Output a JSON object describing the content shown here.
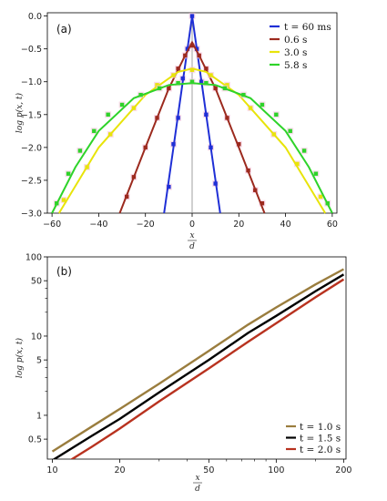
{
  "chart_data": [
    {
      "type": "line",
      "panel_label": "(a)",
      "xlabel_num": "x",
      "xlabel_den": "d",
      "ylabel": "log p(x, t)",
      "xlim": [
        -62,
        62
      ],
      "ylim": [
        -3.0,
        0.05
      ],
      "xticks": [
        -60,
        -40,
        -20,
        0,
        20,
        40,
        60
      ],
      "yticks": [
        0.0,
        -0.5,
        -1.0,
        -1.5,
        -2.0,
        -2.5,
        -3.0
      ],
      "xtick_labels": [
        "−60",
        "−40",
        "−20",
        "0",
        "20",
        "40",
        "60"
      ],
      "ytick_labels": [
        "0.0",
        "−0.5",
        "−1.0",
        "−1.5",
        "−2.0",
        "−2.5",
        "−3.0"
      ],
      "legend_position": "top-right",
      "series": [
        {
          "name": "t = 60 ms",
          "color": "#1f2fd6",
          "curve": [
            [
              -12,
              -3.0
            ],
            [
              -8,
              -2.0
            ],
            [
              -4,
              -1.0
            ],
            [
              -2,
              -0.5
            ],
            [
              0,
              0.0
            ],
            [
              2,
              -0.5
            ],
            [
              4,
              -1.0
            ],
            [
              8,
              -2.0
            ],
            [
              12,
              -3.0
            ]
          ],
          "points": [
            [
              -10,
              -2.6
            ],
            [
              -8,
              -1.95
            ],
            [
              -6,
              -1.55
            ],
            [
              -4,
              -0.95
            ],
            [
              -2,
              -0.5
            ],
            [
              0,
              0.0
            ],
            [
              2,
              -0.5
            ],
            [
              4,
              -1.0
            ],
            [
              6,
              -1.5
            ],
            [
              8,
              -2.0
            ],
            [
              10,
              -2.55
            ]
          ]
        },
        {
          "name": "0.6 s",
          "color": "#9c2a1e",
          "curve": [
            [
              -31,
              -3.0
            ],
            [
              -20,
              -2.0
            ],
            [
              -10,
              -1.1
            ],
            [
              -3,
              -0.6
            ],
            [
              0,
              -0.4
            ],
            [
              3,
              -0.6
            ],
            [
              10,
              -1.1
            ],
            [
              20,
              -2.0
            ],
            [
              31,
              -3.0
            ]
          ],
          "points": [
            [
              -28,
              -2.75
            ],
            [
              -25,
              -2.45
            ],
            [
              -20,
              -2.0
            ],
            [
              -15,
              -1.55
            ],
            [
              -10,
              -1.1
            ],
            [
              -6,
              -0.8
            ],
            [
              -3,
              -0.6
            ],
            [
              0,
              -0.45
            ],
            [
              3,
              -0.6
            ],
            [
              6,
              -0.8
            ],
            [
              10,
              -1.1
            ],
            [
              15,
              -1.55
            ],
            [
              20,
              -1.95
            ],
            [
              24,
              -2.35
            ],
            [
              27,
              -2.65
            ],
            [
              30,
              -2.85
            ]
          ]
        },
        {
          "name": "3.0 s",
          "color": "#e8e40a",
          "curve": [
            [
              -57,
              -3.0
            ],
            [
              -40,
              -2.0
            ],
            [
              -20,
              -1.2
            ],
            [
              -6,
              -0.85
            ],
            [
              0,
              -0.8
            ],
            [
              6,
              -0.85
            ],
            [
              20,
              -1.2
            ],
            [
              40,
              -2.0
            ],
            [
              57,
              -3.0
            ]
          ],
          "points": [
            [
              -55,
              -2.8
            ],
            [
              -45,
              -2.3
            ],
            [
              -35,
              -1.8
            ],
            [
              -25,
              -1.4
            ],
            [
              -15,
              -1.05
            ],
            [
              -8,
              -0.9
            ],
            [
              0,
              -0.82
            ],
            [
              8,
              -0.9
            ],
            [
              15,
              -1.05
            ],
            [
              25,
              -1.4
            ],
            [
              35,
              -1.8
            ],
            [
              45,
              -2.25
            ],
            [
              55,
              -2.75
            ]
          ]
        },
        {
          "name": "5.8 s",
          "color": "#2ed32a",
          "curve": [
            [
              -60,
              -3.0
            ],
            [
              -50,
              -2.3
            ],
            [
              -40,
              -1.75
            ],
            [
              -25,
              -1.25
            ],
            [
              -10,
              -1.05
            ],
            [
              0,
              -1.02
            ],
            [
              10,
              -1.05
            ],
            [
              25,
              -1.25
            ],
            [
              40,
              -1.75
            ],
            [
              50,
              -2.3
            ],
            [
              60,
              -3.0
            ]
          ],
          "points": [
            [
              -58,
              -2.85
            ],
            [
              -53,
              -2.4
            ],
            [
              -48,
              -2.05
            ],
            [
              -42,
              -1.75
            ],
            [
              -36,
              -1.5
            ],
            [
              -30,
              -1.35
            ],
            [
              -22,
              -1.2
            ],
            [
              -14,
              -1.1
            ],
            [
              -6,
              -1.02
            ],
            [
              0,
              -1.0
            ],
            [
              6,
              -1.02
            ],
            [
              14,
              -1.1
            ],
            [
              22,
              -1.2
            ],
            [
              30,
              -1.35
            ],
            [
              36,
              -1.5
            ],
            [
              42,
              -1.75
            ],
            [
              48,
              -2.05
            ],
            [
              53,
              -2.4
            ],
            [
              58,
              -2.85
            ]
          ]
        }
      ]
    },
    {
      "type": "line",
      "panel_label": "(b)",
      "xlabel_num": "x",
      "xlabel_den": "d",
      "ylabel": "log p(x, t)",
      "xscale": "log",
      "yscale": "log",
      "xlim": [
        9.5,
        205
      ],
      "ylim": [
        0.28,
        100
      ],
      "xticks": [
        10,
        20,
        50,
        100,
        200
      ],
      "yticks": [
        0.5,
        1,
        5,
        10,
        50,
        100
      ],
      "xtick_labels": [
        "10",
        "20",
        "50",
        "100",
        "200"
      ],
      "ytick_labels": [
        "0.5",
        "1",
        "5",
        "10",
        "50",
        "100"
      ],
      "legend_position": "bottom-right",
      "series": [
        {
          "name": "t = 1.0 s",
          "color": "#9a7d3e",
          "x": [
            10,
            15,
            20,
            30,
            50,
            75,
            100,
            150,
            200
          ],
          "y": [
            0.35,
            0.72,
            1.2,
            2.5,
            6.5,
            14,
            23,
            45,
            70
          ]
        },
        {
          "name": "t = 1.5 s",
          "color": "#000000",
          "x": [
            10,
            15,
            20,
            30,
            50,
            75,
            100,
            150,
            200
          ],
          "y": [
            0.27,
            0.55,
            0.9,
            1.95,
            5.0,
            11,
            18,
            37,
            60
          ]
        },
        {
          "name": "t = 2.0 s",
          "color": "#b8321f",
          "x": [
            12,
            15,
            20,
            30,
            50,
            75,
            100,
            150,
            200
          ],
          "y": [
            0.27,
            0.4,
            0.68,
            1.5,
            3.9,
            8.5,
            14.5,
            31,
            52
          ]
        }
      ]
    }
  ]
}
